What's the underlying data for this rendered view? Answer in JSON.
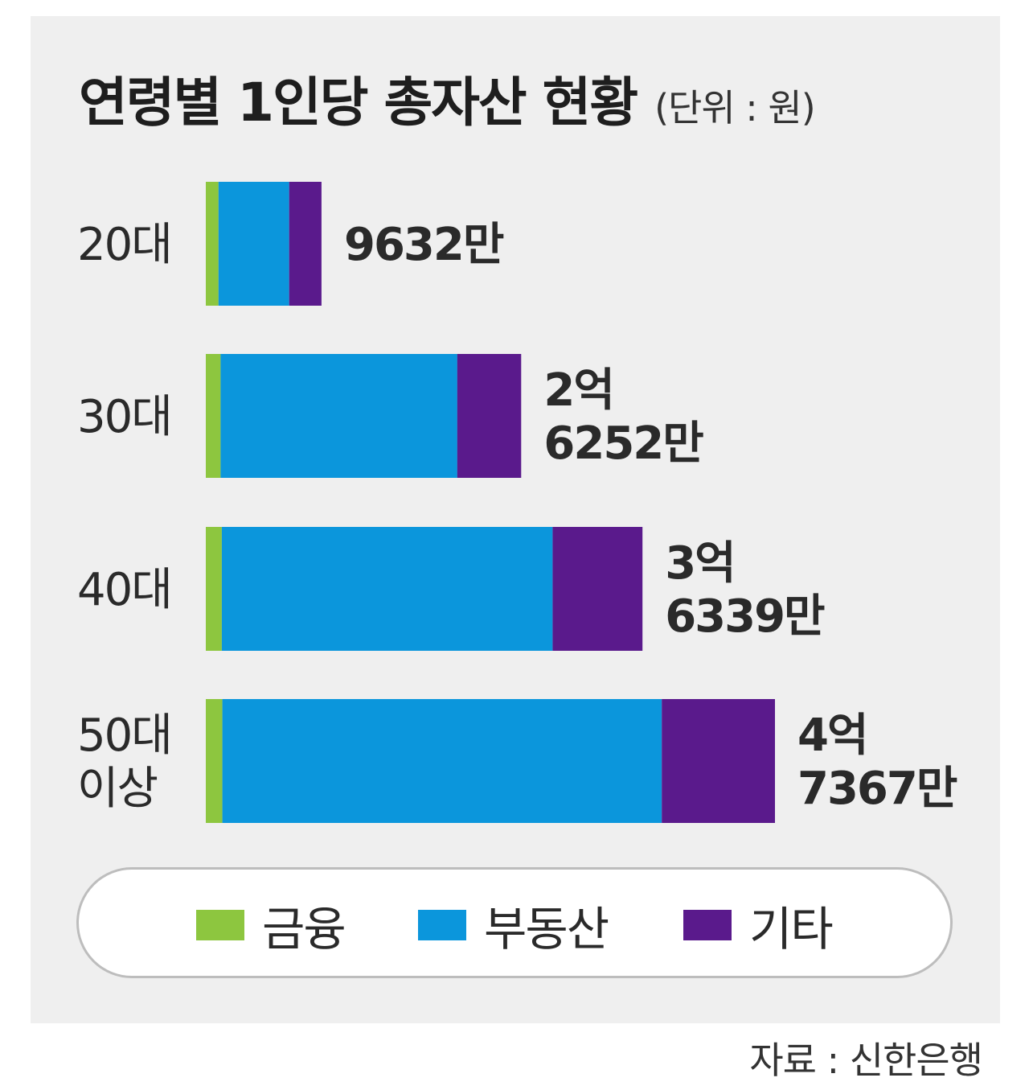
{
  "chart_data": {
    "type": "bar",
    "orientation": "horizontal",
    "stacked": true,
    "title": "연령별 1인당 총자산 현황",
    "unit": "(단위 : 원)",
    "source": "자료 : 신한은행",
    "categories": [
      {
        "lines": [
          "20대"
        ]
      },
      {
        "lines": [
          "30대"
        ]
      },
      {
        "lines": [
          "40대"
        ]
      },
      {
        "lines": [
          "50대",
          "이상"
        ]
      }
    ],
    "totals": [
      9632,
      26252,
      36339,
      47367
    ],
    "total_labels": [
      [
        "9632만"
      ],
      [
        "2억",
        "6252만"
      ],
      [
        "3억",
        "6339만"
      ],
      [
        "4억",
        "7367만"
      ]
    ],
    "series": [
      {
        "name": "금융",
        "color": "#8dc63f",
        "values": [
          1060,
          1230,
          1330,
          1380
        ]
      },
      {
        "name": "부동산",
        "color": "#0b96dc",
        "values": [
          5880,
          19700,
          27530,
          36570
        ]
      },
      {
        "name": "기타",
        "color": "#5a1a8c",
        "values": [
          2692,
          5322,
          7479,
          9417
        ]
      }
    ],
    "xlim": [
      0,
      47367
    ],
    "grid": false,
    "legend_position": "bottom"
  }
}
